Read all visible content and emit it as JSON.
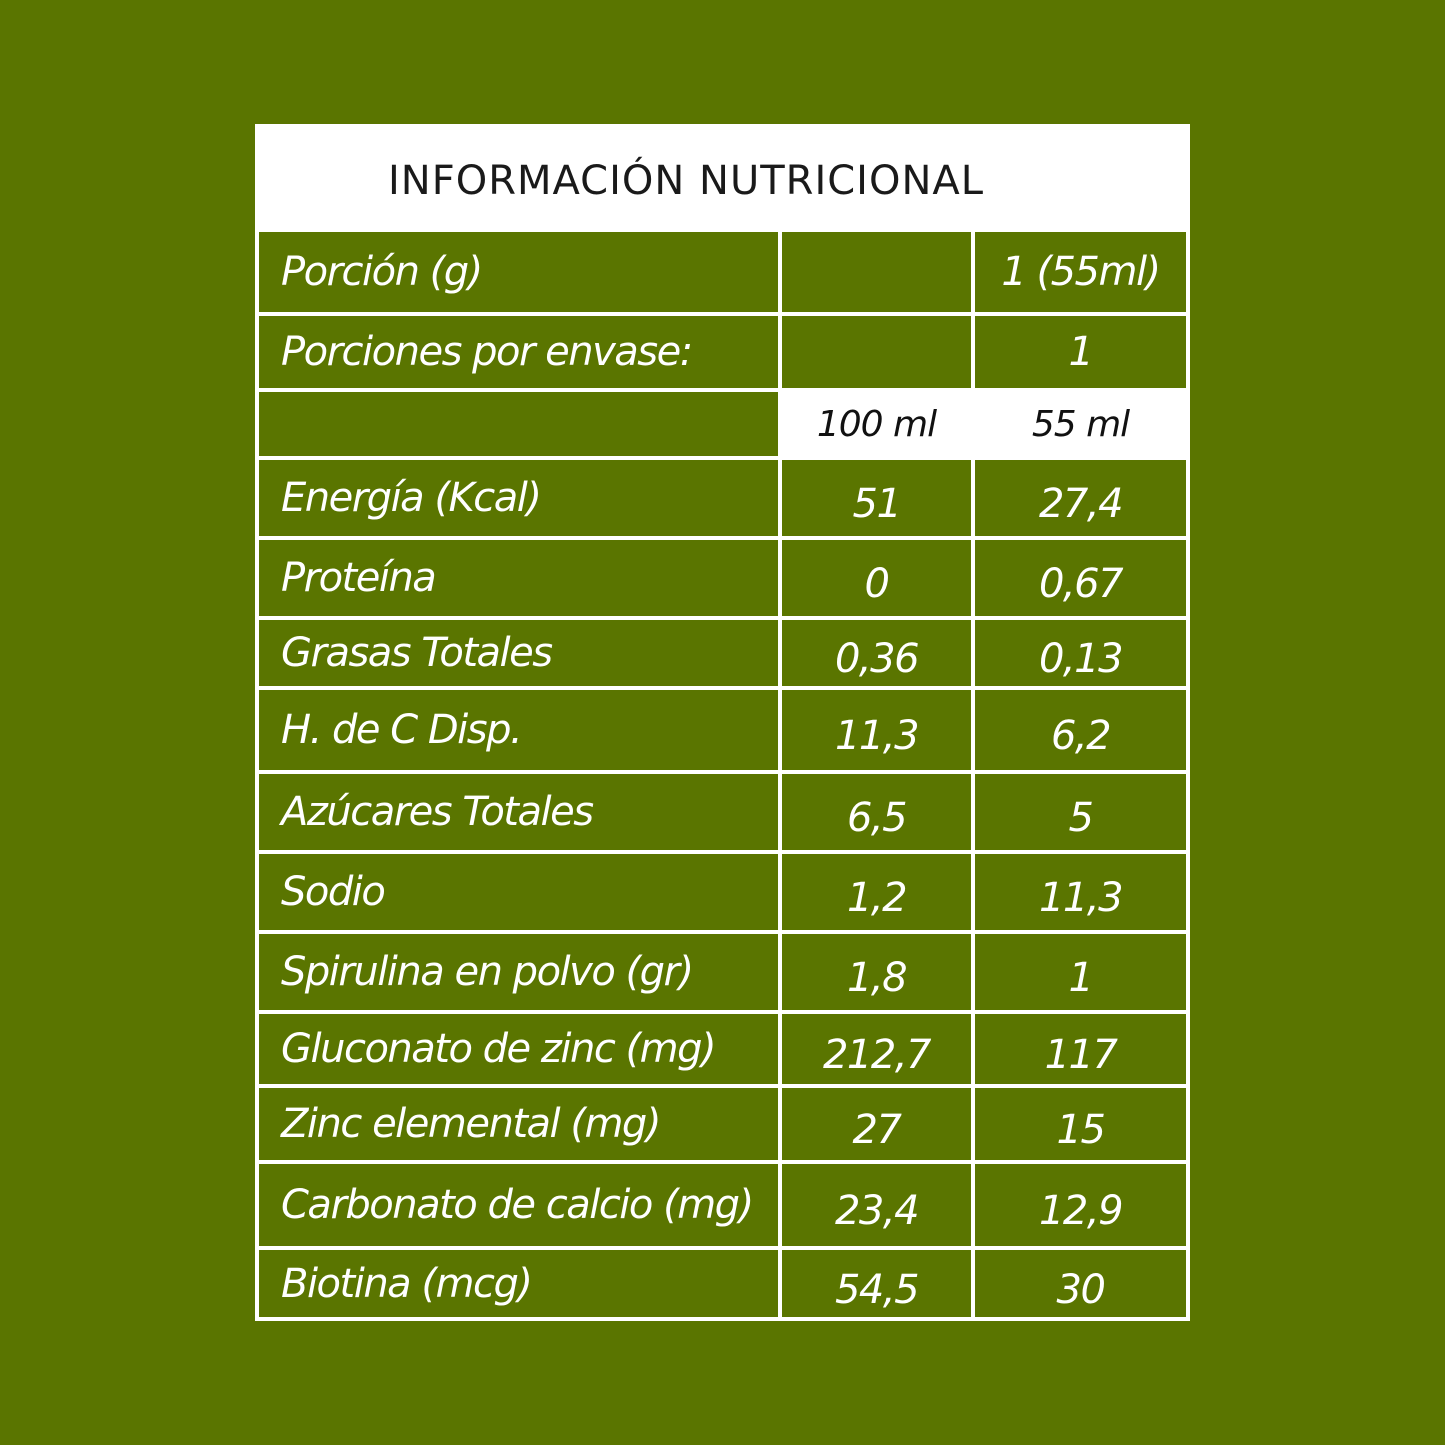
{
  "title": "INFORMACIÓN NUTRICIONAL",
  "header_rows": [
    {
      "label": "Porción (g)",
      "col1": "",
      "col2": "1 (55ml)"
    },
    {
      "label": "Porciones por envase:",
      "col1": "",
      "col2": "1"
    }
  ],
  "units_row": {
    "label": "",
    "col1": "100 ml",
    "col2": "55 ml"
  },
  "rows": [
    {
      "label": "Energía (Kcal)",
      "col1": "51",
      "col2": "27,4"
    },
    {
      "label": "Proteína",
      "col1": "0",
      "col2": "0,67"
    },
    {
      "label": "Grasas Totales",
      "col1": "0,36",
      "col2": "0,13"
    },
    {
      "label": "H. de C Disp.",
      "col1": "11,3",
      "col2": "6,2"
    },
    {
      "label": "Azúcares Totales",
      "col1": "6,5",
      "col2": "5"
    },
    {
      "label": "Sodio",
      "col1": "1,2",
      "col2": "11,3"
    },
    {
      "label": "Spirulina en polvo (gr)",
      "col1": "1,8",
      "col2": "1"
    },
    {
      "label": "Gluconato de zinc (mg)",
      "col1": "212,7",
      "col2": "117"
    },
    {
      "label": "Zinc elemental (mg)",
      "col1": "27",
      "col2": "15"
    },
    {
      "label": "Carbonato de calcio (mg)",
      "col1": "23,4",
      "col2": "12,9"
    },
    {
      "label": "Biotina (mcg)",
      "col1": "54,5",
      "col2": "30"
    }
  ],
  "colors": {
    "background": "#5a7500",
    "grid": "#ffffff",
    "title_text": "#1a1a1a"
  }
}
